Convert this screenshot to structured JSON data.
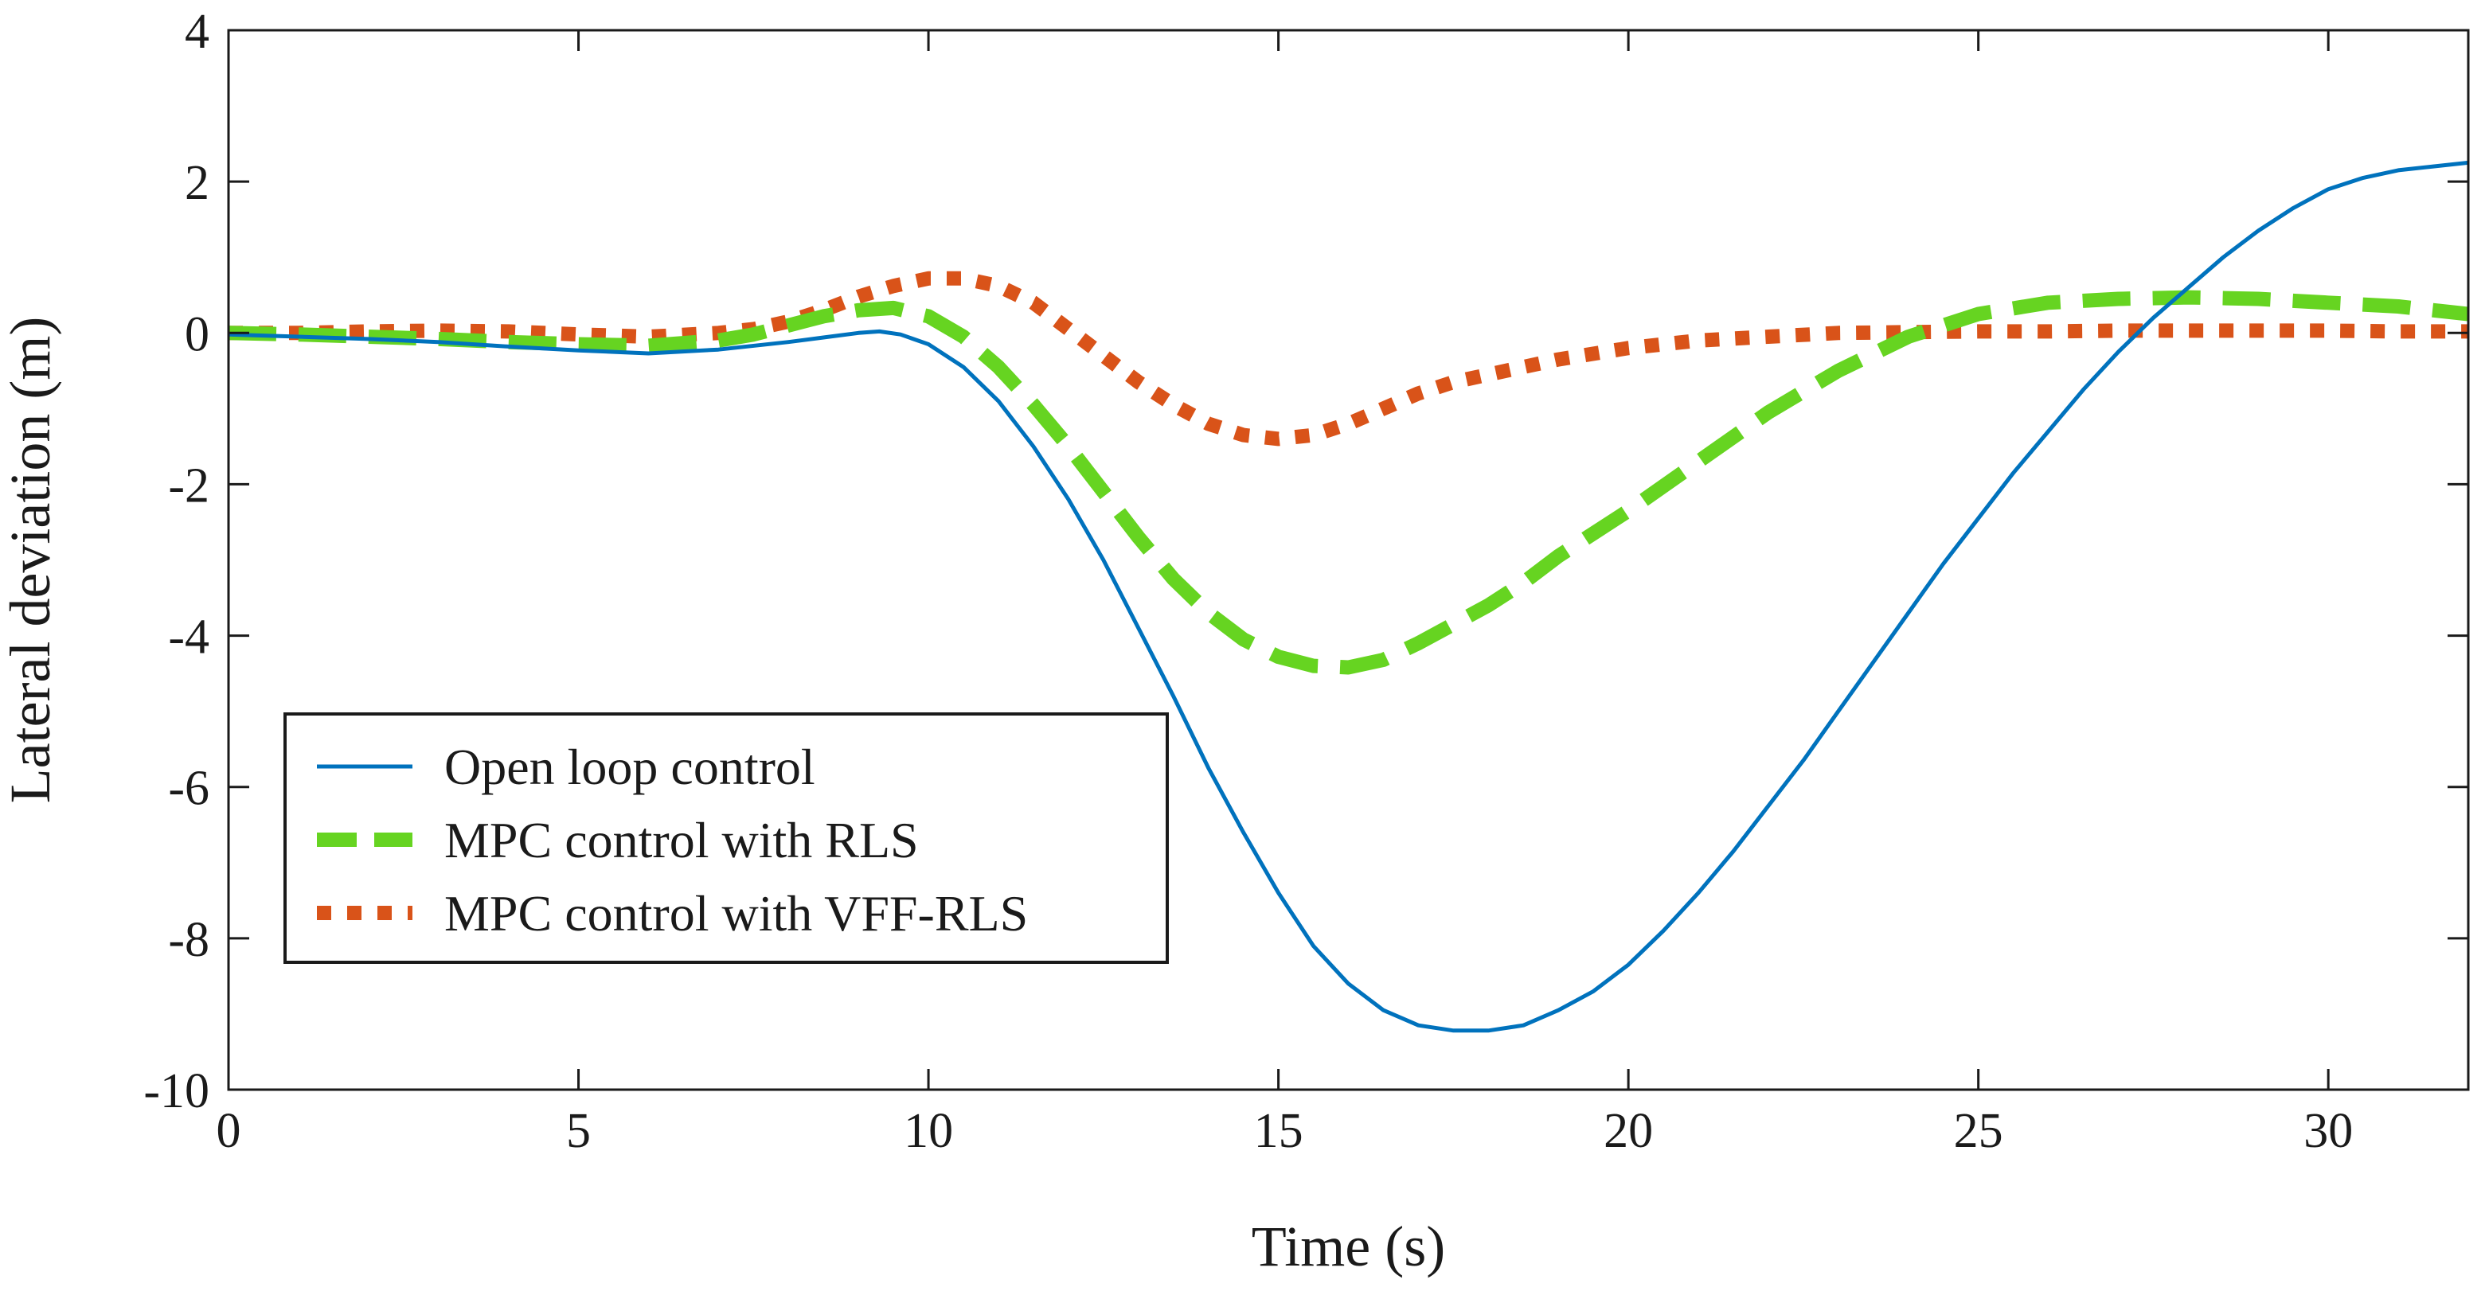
{
  "chart_data": {
    "type": "line",
    "title": "",
    "xlabel": "Time (s)",
    "ylabel": "Lateral deviation (m)",
    "xlim": [
      0,
      32
    ],
    "ylim": [
      -10,
      4
    ],
    "xticks": [
      0,
      5,
      10,
      15,
      20,
      25,
      30
    ],
    "xtick_labels": [
      "0",
      "5",
      "10",
      "15",
      "20",
      "25",
      "30"
    ],
    "yticks": [
      4,
      2,
      0,
      -2,
      -4,
      -6,
      -8,
      -10
    ],
    "ytick_labels": [
      "4",
      "2",
      "0",
      "-2",
      "-4",
      "-6",
      "-8",
      "-10"
    ],
    "grid": false,
    "legend_position": "lower-left",
    "series": [
      {
        "name": "Open loop control",
        "color": "#0072BD",
        "style": "solid",
        "x": [
          0,
          1,
          2,
          3,
          4,
          5,
          6,
          7,
          8,
          8.5,
          9,
          9.3,
          9.6,
          10,
          10.5,
          11,
          11.5,
          12,
          12.5,
          13,
          13.5,
          14,
          14.5,
          15,
          15.5,
          16,
          16.5,
          17,
          17.5,
          18,
          18.5,
          19,
          19.5,
          20,
          20.5,
          21,
          21.5,
          22,
          22.5,
          23,
          23.5,
          24,
          24.5,
          25,
          25.5,
          26,
          26.5,
          27,
          27.5,
          28,
          28.5,
          29,
          29.5,
          30,
          30.5,
          31,
          31.5,
          32
        ],
        "y": [
          -0.02,
          -0.05,
          -0.08,
          -0.12,
          -0.18,
          -0.23,
          -0.27,
          -0.22,
          -0.12,
          -0.06,
          0.0,
          0.02,
          -0.02,
          -0.15,
          -0.45,
          -0.9,
          -1.5,
          -2.2,
          -3.0,
          -3.9,
          -4.8,
          -5.75,
          -6.6,
          -7.4,
          -8.1,
          -8.6,
          -8.95,
          -9.15,
          -9.22,
          -9.22,
          -9.15,
          -8.95,
          -8.7,
          -8.35,
          -7.9,
          -7.4,
          -6.85,
          -6.25,
          -5.65,
          -5.0,
          -4.35,
          -3.7,
          -3.05,
          -2.45,
          -1.85,
          -1.3,
          -0.75,
          -0.25,
          0.2,
          0.6,
          1.0,
          1.35,
          1.65,
          1.9,
          2.05,
          2.15,
          2.2,
          2.25
        ]
      },
      {
        "name": "MPC control with RLS",
        "color": "#66D421",
        "style": "dashed",
        "x": [
          0,
          1,
          2,
          3,
          4,
          5,
          6,
          7,
          7.5,
          8,
          8.5,
          9,
          9.5,
          10,
          10.5,
          11,
          11.5,
          12,
          12.5,
          13,
          13.5,
          14,
          14.5,
          15,
          15.5,
          16,
          16.5,
          17,
          17.5,
          18,
          18.5,
          19,
          19.5,
          20,
          21,
          22,
          23,
          24,
          25,
          26,
          27,
          28,
          29,
          30,
          31,
          32
        ],
        "y": [
          0.0,
          -0.02,
          -0.05,
          -0.08,
          -0.12,
          -0.15,
          -0.17,
          -0.1,
          -0.02,
          0.1,
          0.22,
          0.3,
          0.33,
          0.22,
          -0.05,
          -0.45,
          -0.95,
          -1.5,
          -2.1,
          -2.7,
          -3.25,
          -3.7,
          -4.05,
          -4.28,
          -4.4,
          -4.42,
          -4.32,
          -4.1,
          -3.85,
          -3.6,
          -3.3,
          -2.95,
          -2.65,
          -2.35,
          -1.7,
          -1.05,
          -0.5,
          -0.05,
          0.25,
          0.4,
          0.45,
          0.47,
          0.45,
          0.4,
          0.35,
          0.25
        ]
      },
      {
        "name": "MPC control with VFF-RLS",
        "color": "#D95319",
        "style": "dotted",
        "x": [
          0,
          1,
          2,
          3,
          4,
          5,
          6,
          7,
          7.5,
          8,
          8.5,
          9,
          9.5,
          10,
          10.5,
          11,
          11.5,
          12,
          12.5,
          13,
          13.5,
          14,
          14.5,
          15,
          15.5,
          16,
          16.5,
          17,
          17.5,
          18,
          19,
          20,
          21,
          22,
          23,
          24,
          25,
          26,
          27,
          28,
          29,
          30,
          31,
          32
        ],
        "y": [
          0.0,
          0.0,
          0.02,
          0.03,
          0.02,
          -0.02,
          -0.05,
          0.0,
          0.05,
          0.15,
          0.3,
          0.48,
          0.62,
          0.72,
          0.72,
          0.62,
          0.4,
          0.05,
          -0.3,
          -0.65,
          -0.95,
          -1.2,
          -1.35,
          -1.4,
          -1.35,
          -1.2,
          -1.0,
          -0.8,
          -0.65,
          -0.55,
          -0.35,
          -0.2,
          -0.1,
          -0.05,
          0.0,
          0.01,
          0.02,
          0.02,
          0.03,
          0.03,
          0.03,
          0.03,
          0.02,
          0.02
        ]
      }
    ]
  }
}
